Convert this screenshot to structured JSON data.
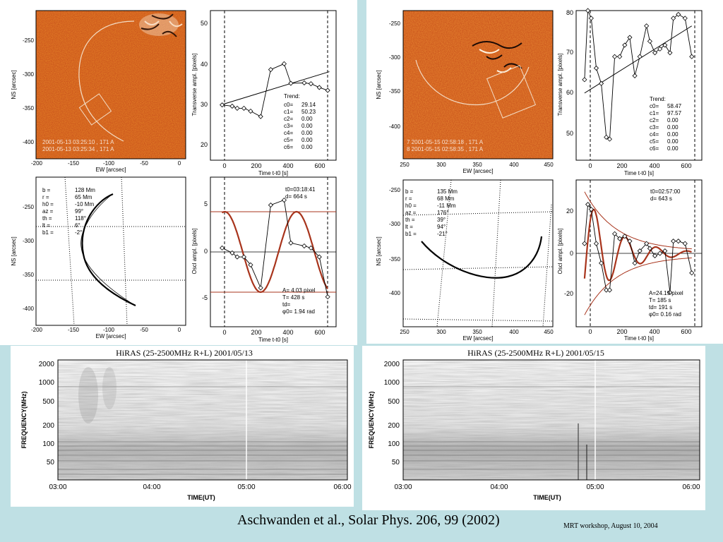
{
  "left": {
    "image_axes": {
      "xlabel": "EW [arcsec]",
      "ylabel": "NS [arcsec]",
      "xticks": [
        "-200",
        "-150",
        "-100",
        "-50",
        "0"
      ],
      "yticks": [
        "-250",
        "-300",
        "-350",
        "-400"
      ],
      "legend": [
        "2001-05-13 03:25:10 , 171 A",
        "2001-05-13 03:25:34 , 171 A"
      ]
    },
    "trend": {
      "ylabel": "Transverse ampl. [pixels]",
      "xlabel": "Time t-t0 [s]",
      "yticks": [
        "20",
        "30",
        "40",
        "50"
      ],
      "xticks": [
        "0",
        "200",
        "400",
        "600"
      ],
      "title": "Trend:",
      "coeffs": [
        [
          "c0=",
          "29.14"
        ],
        [
          "c1=",
          "50.23"
        ],
        [
          "c2=",
          "0.00"
        ],
        [
          "c3=",
          "0.00"
        ],
        [
          "c4=",
          "0.00"
        ],
        [
          "c5=",
          "0.00"
        ],
        [
          "c6=",
          "0.00"
        ]
      ]
    },
    "geom": {
      "xlabel": "EW [arcsec]",
      "ylabel": "NS [arcsec]",
      "xticks": [
        "-200",
        "-150",
        "-100",
        "-50",
        "0"
      ],
      "yticks": [
        "-250",
        "-300",
        "-350",
        "-400"
      ],
      "params": [
        [
          "b =",
          "128 Mm"
        ],
        [
          "r =",
          "65 Mm"
        ],
        [
          "h0 =",
          "-10 Mm"
        ],
        [
          "az =",
          "99°"
        ],
        [
          "th =",
          "118°"
        ],
        [
          "lt =",
          "6°"
        ],
        [
          "b1 =",
          "-2°"
        ]
      ]
    },
    "osc": {
      "ylabel": "Oscl ampl. [pixels]",
      "xlabel": "Time t-t0 [s]",
      "yticks": [
        "5",
        "0",
        "-5"
      ],
      "xticks": [
        "0",
        "200",
        "400",
        "600"
      ],
      "info": [
        "t0=03:18:41",
        "d= 664 s"
      ],
      "fit": [
        "A= 4.03 pixel",
        "T= 428 s",
        "td=",
        "φ0= 1.94 rad"
      ]
    }
  },
  "right": {
    "image_axes": {
      "xlabel": "EW [arcsec]",
      "ylabel": "NS [arcsec]",
      "xticks": [
        "250",
        "300",
        "350",
        "400",
        "450"
      ],
      "yticks": [
        "-250",
        "-300",
        "-350",
        "-400"
      ],
      "legend": [
        "7 2001-05-15 02:58:18 , 171 A",
        "8 2001-05-15 02:58:35 , 171 A"
      ]
    },
    "trend": {
      "ylabel": "Transverse ampl. [pixels]",
      "xlabel": "Time t-t0 [s]",
      "yticks": [
        "50",
        "60",
        "70",
        "80"
      ],
      "xticks": [
        "0",
        "200",
        "400",
        "600"
      ],
      "title": "Trend:",
      "coeffs": [
        [
          "c0=",
          "58.47"
        ],
        [
          "c1=",
          "97.57"
        ],
        [
          "c2=",
          "0.00"
        ],
        [
          "c3=",
          "0.00"
        ],
        [
          "c4=",
          "0.00"
        ],
        [
          "c5=",
          "0.00"
        ],
        [
          "c6=",
          "0.00"
        ]
      ]
    },
    "geom": {
      "xlabel": "EW [arcsec]",
      "ylabel": "NS [arcsec]",
      "xticks": [
        "250",
        "300",
        "350",
        "400",
        "450"
      ],
      "yticks": [
        "-250",
        "-300",
        "-350",
        "-400"
      ],
      "params": [
        [
          "b =",
          "135 Mm"
        ],
        [
          "r =",
          "68 Mm"
        ],
        [
          "h0 =",
          "-11 Mm"
        ],
        [
          "az =",
          "176°"
        ],
        [
          "th =",
          "39°"
        ],
        [
          "lt =",
          "94°"
        ],
        [
          "b1 =",
          "-21°"
        ]
      ]
    },
    "osc": {
      "ylabel": "Oscl ampl. [pixels]",
      "xlabel": "Time t-t0 [s]",
      "yticks": [
        "20",
        "0",
        "-20"
      ],
      "xticks": [
        "0",
        "200",
        "400",
        "600"
      ],
      "info": [
        "t0=02:57:00",
        "d= 643 s"
      ],
      "fit": [
        "A=24.19 pixel",
        "T= 185 s",
        "td= 191 s",
        "φ0= 0.16 rad"
      ]
    }
  },
  "spectra": [
    {
      "title": "HiRAS (25-2500MHz R+L)   2001/05/13",
      "ylabel": "FREQUENCY(MHz)",
      "xlabel": "TIME(UT)",
      "yticks": [
        "2000",
        "1000",
        "500",
        "200",
        "100",
        "50"
      ],
      "xticks": [
        "03:00",
        "04:00",
        "05:00",
        "06:00"
      ]
    },
    {
      "title": "HiRAS (25-2500MHz R+L)   2001/05/15",
      "ylabel": "FREQUENCY(MHz)",
      "xlabel": "TIME(UT)",
      "yticks": [
        "2000",
        "1000",
        "500",
        "200",
        "100",
        "50"
      ],
      "xticks": [
        "03:00",
        "04:00",
        "05:00",
        "06:00"
      ]
    }
  ],
  "chart_data": [
    {
      "type": "line",
      "title": "",
      "xlabel": "Time t-t0 [s]",
      "ylabel": "Transverse ampl. [pixels]",
      "xlim": [
        -50,
        700
      ],
      "ylim": [
        17,
        53
      ],
      "series": [
        {
          "values": [
            [
              20,
              30.3
            ],
            [
              80,
              30
            ],
            [
              110,
              29.5
            ],
            [
              150,
              29.5
            ],
            [
              190,
              28.8
            ],
            [
              250,
              27.5
            ],
            [
              310,
              38.8
            ],
            [
              390,
              40.2
            ],
            [
              430,
              35.5
            ],
            [
              510,
              35.6
            ],
            [
              550,
              35.4
            ],
            [
              600,
              34.5
            ],
            [
              650,
              33.8
            ]
          ]
        }
      ],
      "trend": [
        [
          20,
          30.4
        ],
        [
          660,
          38.3
        ]
      ]
    },
    {
      "type": "line",
      "title": "",
      "xlabel": "Time t-t0 [s]",
      "ylabel": "Oscl ampl. [pixels]",
      "xlim": [
        -50,
        700
      ],
      "ylim": [
        -7.5,
        7.5
      ],
      "series": [
        {
          "values": [
            [
              20,
              0.4
            ],
            [
              80,
              -0.1
            ],
            [
              110,
              -0.5
            ],
            [
              150,
              -0.5
            ],
            [
              190,
              -1.3
            ],
            [
              250,
              -3.6
            ],
            [
              310,
              4.7
            ],
            [
              390,
              5.2
            ],
            [
              430,
              0.9
            ],
            [
              510,
              0.6
            ],
            [
              550,
              0.4
            ],
            [
              600,
              -0.5
            ],
            [
              650,
              -4.5
            ]
          ]
        }
      ],
      "fit": {
        "A": 4.03,
        "T": 428,
        "phi0": 1.94
      }
    },
    {
      "type": "line",
      "title": "",
      "xlabel": "Time t-t0 [s]",
      "ylabel": "Transverse ampl. [pixels]",
      "xlim": [
        -50,
        700
      ],
      "ylim": [
        41,
        80
      ],
      "series": [
        {
          "values": [
            [
              0,
              62
            ],
            [
              20,
              80
            ],
            [
              40,
              78
            ],
            [
              70,
              65
            ],
            [
              100,
              61
            ],
            [
              130,
              47
            ],
            [
              150,
              46.5
            ],
            [
              180,
              68
            ],
            [
              210,
              68
            ],
            [
              240,
              71
            ],
            [
              270,
              73
            ],
            [
              300,
              63
            ],
            [
              330,
              68
            ],
            [
              370,
              76
            ],
            [
              390,
              72
            ],
            [
              420,
              69
            ],
            [
              450,
              70
            ],
            [
              480,
              71
            ],
            [
              510,
              69
            ],
            [
              530,
              78
            ],
            [
              560,
              79
            ],
            [
              600,
              78
            ],
            [
              640,
              68
            ]
          ]
        }
      ],
      "trend": [
        [
          0,
          58.5
        ],
        [
          640,
          76
        ]
      ]
    },
    {
      "type": "line",
      "title": "",
      "xlabel": "Time t-t0 [s]",
      "ylabel": "Oscl ampl. [pixels]",
      "xlim": [
        -50,
        700
      ],
      "ylim": [
        -30,
        30
      ],
      "series": [
        {
          "values": [
            [
              0,
              4
            ],
            [
              20,
              20
            ],
            [
              40,
              18
            ],
            [
              70,
              4
            ],
            [
              100,
              -4
            ],
            [
              130,
              -15
            ],
            [
              150,
              -15
            ],
            [
              180,
              8
            ],
            [
              210,
              6
            ],
            [
              240,
              7
            ],
            [
              270,
              5
            ],
            [
              300,
              -4
            ],
            [
              330,
              1
            ],
            [
              370,
              4
            ],
            [
              390,
              2
            ],
            [
              420,
              -1
            ],
            [
              450,
              0
            ],
            [
              480,
              1
            ],
            [
              510,
              -16
            ],
            [
              530,
              5
            ],
            [
              560,
              5
            ],
            [
              600,
              4
            ],
            [
              640,
              -8
            ]
          ]
        }
      ],
      "fit": {
        "A": 24.19,
        "T": 185,
        "td": 191,
        "phi0": 0.16
      }
    }
  ],
  "citation": "Aschwanden et al., Solar Phys. 206, 99 (2002)",
  "footer": "MRT workshop,  August 10,  2004"
}
